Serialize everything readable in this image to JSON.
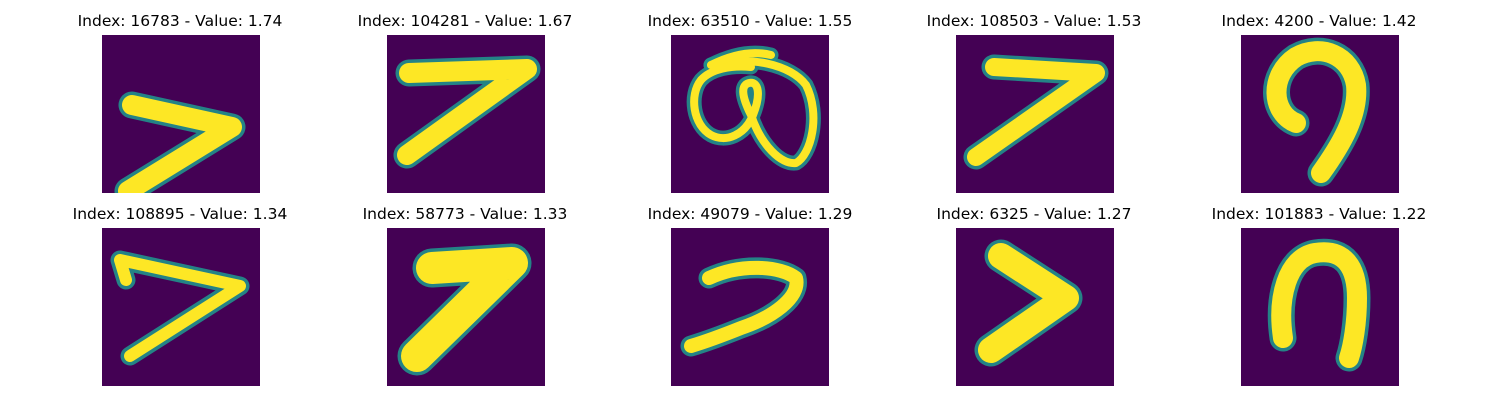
{
  "colors": {
    "background": "#440154",
    "stroke": "#fde725",
    "edge": "#21918c"
  },
  "panels": [
    {
      "title": "Index: 16783 - Value: 1.74",
      "glyph": "seven-sharp"
    },
    {
      "title": "Index: 104281 - Value: 1.67",
      "glyph": "seven-top-bar"
    },
    {
      "title": "Index: 63510 - Value: 1.55",
      "glyph": "loopy-scribble"
    },
    {
      "title": "Index: 108503 - Value: 1.53",
      "glyph": "seven-clean"
    },
    {
      "title": "Index: 4200 - Value: 1.42",
      "glyph": "hook-curve"
    },
    {
      "title": "Index: 108895 - Value: 1.34",
      "glyph": "seven-thin-angle"
    },
    {
      "title": "Index: 58773 - Value: 1.33",
      "glyph": "seven-blob"
    },
    {
      "title": "Index: 49079 - Value: 1.29",
      "glyph": "seven-wavy"
    },
    {
      "title": "Index: 6325 - Value: 1.27",
      "glyph": "angle-thick"
    },
    {
      "title": "Index: 101883 - Value: 1.22",
      "glyph": "arch-curve"
    }
  ]
}
